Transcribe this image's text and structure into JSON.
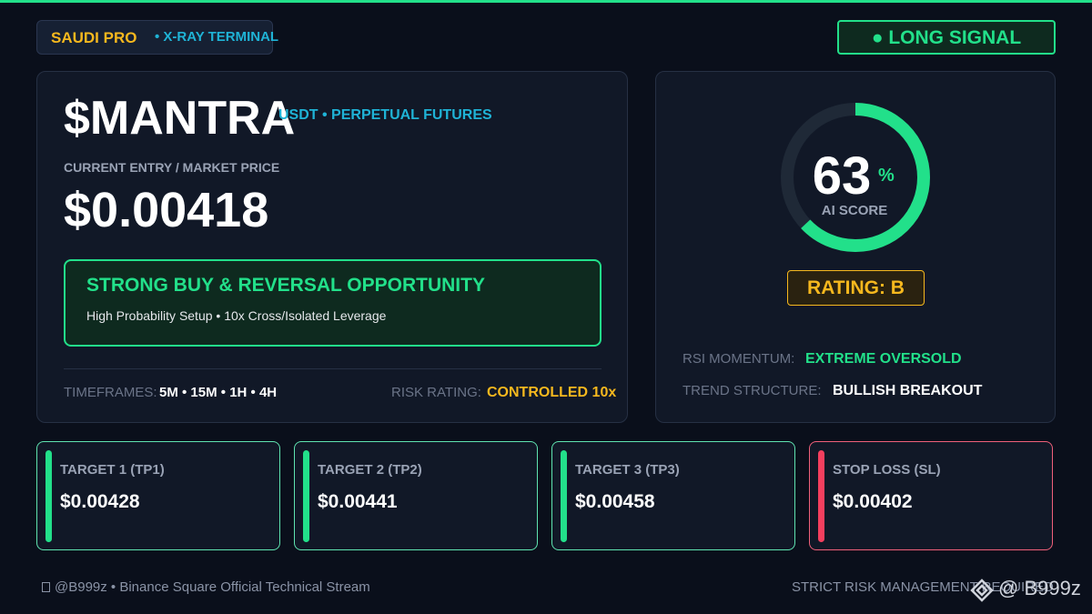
{
  "header": {
    "brand": "SAUDI PRO",
    "subtitle": "• X-RAY TERMINAL",
    "signal": "● LONG SIGNAL"
  },
  "asset": {
    "ticker": "$MANTRA",
    "market": "USDT • PERPETUAL FUTURES",
    "price_label": "CURRENT ENTRY / MARKET PRICE",
    "price": "$0.00418"
  },
  "callout": {
    "title": "STRONG BUY & REVERSAL OPPORTUNITY",
    "text": "High Probability Setup • 10x Cross/Isolated Leverage"
  },
  "meta": {
    "timeframes_label": "TIMEFRAMES:",
    "timeframes": "5M • 15M • 1H • 4H",
    "risk_label": "RISK RATING:",
    "risk": "CONTROLLED 10x"
  },
  "score": {
    "value": 63,
    "unit": "%",
    "label": "AI SCORE",
    "rating": "RATING: B"
  },
  "indicators": [
    {
      "label": "RSI MOMENTUM:",
      "value": "EXTREME OVERSOLD"
    },
    {
      "label": "TREND STRUCTURE:",
      "value": "BULLISH BREAKOUT"
    }
  ],
  "targets": [
    {
      "label": "TARGET 1 (TP1)",
      "price": "$0.00428"
    },
    {
      "label": "TARGET 2 (TP2)",
      "price": "$0.00441"
    },
    {
      "label": "TARGET 3 (TP3)",
      "price": "$0.00458"
    },
    {
      "label": "STOP LOSS (SL)",
      "price": "$0.00402"
    }
  ],
  "footer": {
    "left": "@B999z • Binance Square Official Technical Stream",
    "right": "STRICT RISK MANAGEMENT REQUIRED",
    "watermark": "@ B999z"
  }
}
